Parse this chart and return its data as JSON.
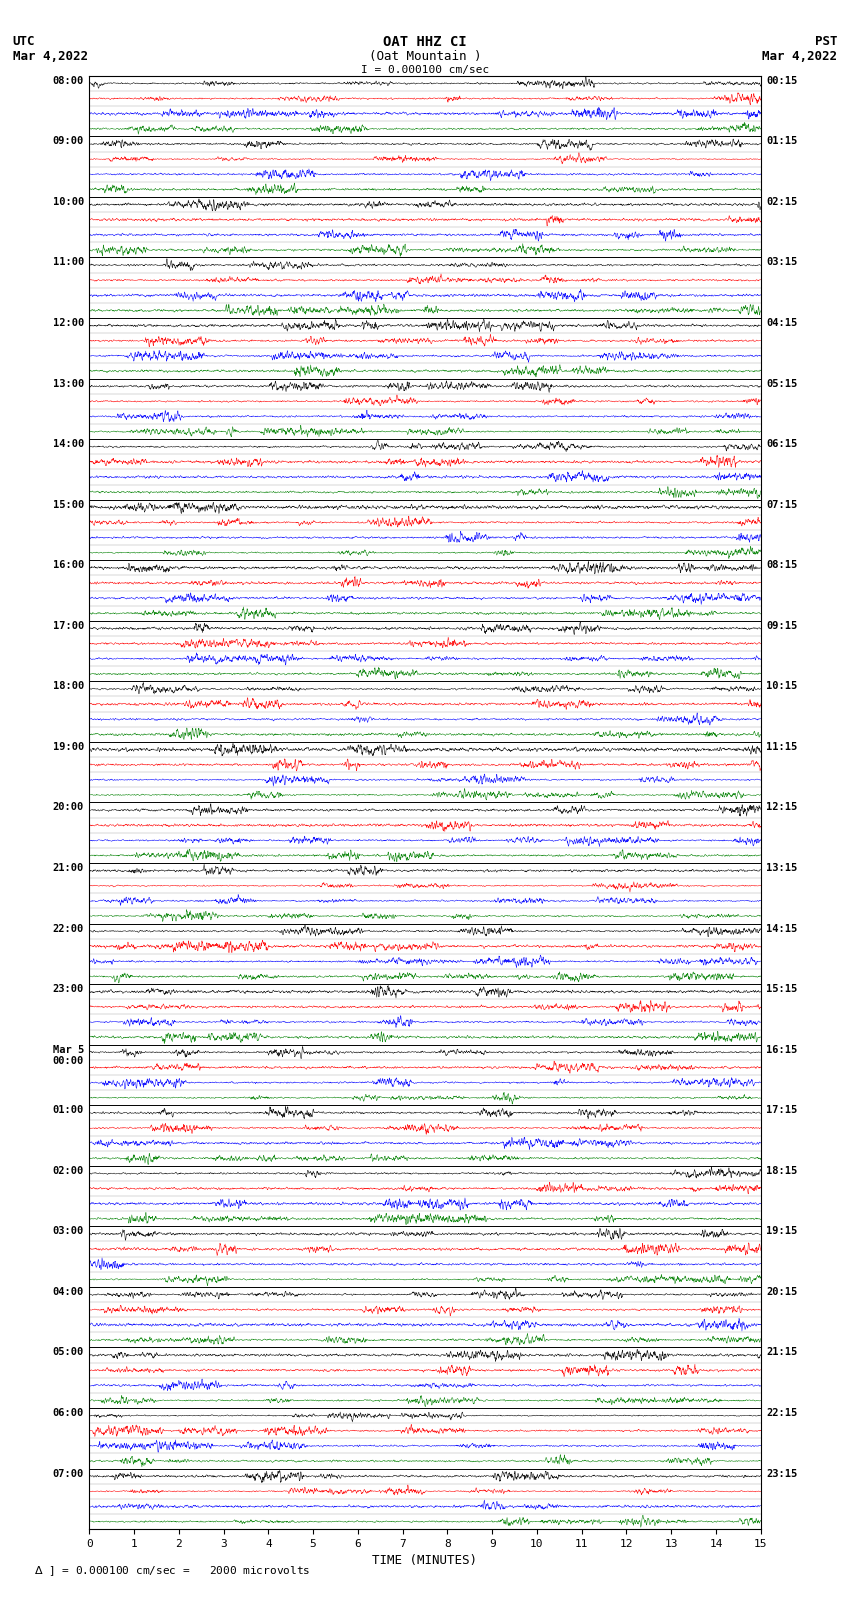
{
  "title_line1": "OAT HHZ CI",
  "title_line2": "(Oat Mountain )",
  "scale_label": "I = 0.000100 cm/sec",
  "left_label": "UTC",
  "left_date": "Mar 4,2022",
  "right_label": "PST",
  "right_date": "Mar 4,2022",
  "xlabel": "TIME (MINUTES)",
  "footer": "0.000100 cm/sec =   2000 microvolts",
  "utc_times": [
    "08:00",
    "09:00",
    "10:00",
    "11:00",
    "12:00",
    "13:00",
    "14:00",
    "15:00",
    "16:00",
    "17:00",
    "18:00",
    "19:00",
    "20:00",
    "21:00",
    "22:00",
    "23:00",
    "Mar 5\n00:00",
    "01:00",
    "02:00",
    "03:00",
    "04:00",
    "05:00",
    "06:00",
    "07:00"
  ],
  "pst_times": [
    "00:15",
    "01:15",
    "02:15",
    "03:15",
    "04:15",
    "05:15",
    "06:15",
    "07:15",
    "08:15",
    "09:15",
    "10:15",
    "11:15",
    "12:15",
    "13:15",
    "14:15",
    "15:15",
    "16:15",
    "17:15",
    "18:15",
    "19:15",
    "20:15",
    "21:15",
    "22:15",
    "23:15"
  ],
  "n_rows": 24,
  "n_cols": 4,
  "colors": [
    "black",
    "red",
    "blue",
    "green"
  ],
  "fig_width": 8.5,
  "fig_height": 16.13,
  "dpi": 100,
  "bg_color": "white",
  "plot_bg": "white",
  "x_ticks": [
    0,
    1,
    2,
    3,
    4,
    5,
    6,
    7,
    8,
    9,
    10,
    11,
    12,
    13,
    14,
    15
  ],
  "x_lim": [
    0,
    15
  ],
  "amplitude": 0.42
}
